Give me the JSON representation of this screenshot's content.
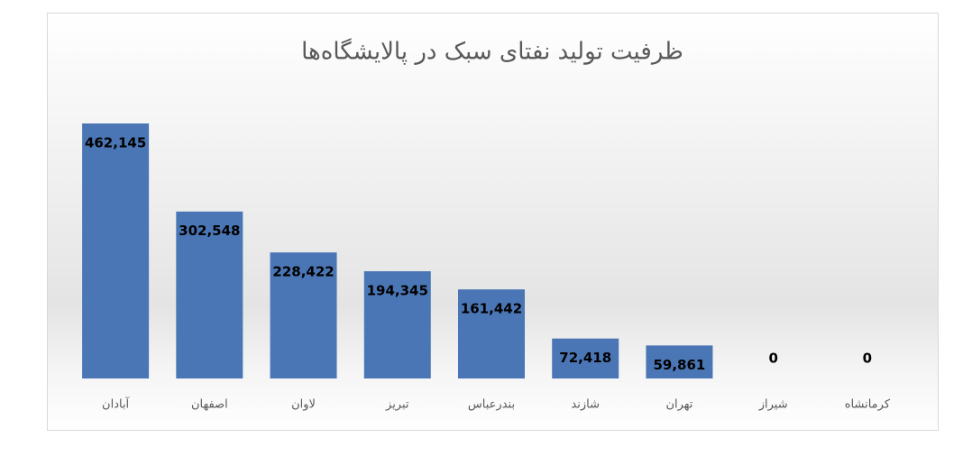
{
  "chart_data": {
    "type": "bar",
    "title": "ظرفیت تولید نفتای سبک در پالایشگاه‌ها",
    "categories": [
      "آبادان",
      "اصفهان",
      "لاوان",
      "تبریز",
      "بندرعباس",
      "شازند",
      "تهران",
      "شیراز",
      "کرمانشاه"
    ],
    "values": [
      462145,
      302548,
      228422,
      194345,
      161442,
      72418,
      59861,
      0,
      0
    ],
    "value_labels": [
      "462,145",
      "302,548",
      "228,422",
      "194,345",
      "161,442",
      "72,418",
      "59,861",
      "0",
      "0"
    ],
    "color": "#4a76b5"
  }
}
